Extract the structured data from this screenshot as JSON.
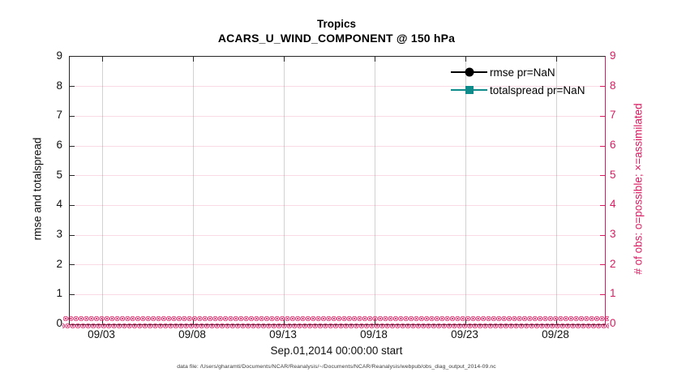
{
  "title": {
    "line1": "Tropics",
    "line2": "ACARS_U_WIND_COMPONENT @ 150 hPa"
  },
  "axes": {
    "ylabel_left": "rmse and totalspread",
    "ylabel_right": "# of obs: o=possible; ×=assimilated",
    "xlabel": "Sep.01,2014 00:00:00 start",
    "y_tick_labels": [
      "0",
      "1",
      "2",
      "3",
      "4",
      "5",
      "6",
      "7",
      "8",
      "9"
    ],
    "x_tick_labels": [
      "09/03",
      "09/08",
      "09/13",
      "09/18",
      "09/23",
      "09/28"
    ]
  },
  "legend": {
    "items": [
      {
        "label": "rmse pr=NaN",
        "color": "#000000",
        "marker": "circle"
      },
      {
        "label": "totalspread pr=NaN",
        "color": "#0f8b8b",
        "marker": "square"
      }
    ]
  },
  "footer": "data file: /Users/gharamti/Documents/NCAR/Reanalysis/~/Documents/NCAR/Reanalysis/webpub/obs_diag_output_2014-09.nc",
  "colors": {
    "accent_pink": "#d81b60",
    "teal": "#0f8b8b",
    "axis_dark": "#262626",
    "grid_horizontal": "rgba(216,27,96,0.16)",
    "grid_vertical": "rgba(125,125,125,0.35)"
  },
  "marker_band": {
    "glyph": "⊗",
    "meaning": "overlapping o=possible and ×=assimilated markers at count 0 along entire x-axis",
    "color": "#d81b60"
  },
  "chart_data": {
    "type": "line",
    "title": "Tropics",
    "subtitle": "ACARS_U_WIND_COMPONENT @ 150 hPa",
    "xlabel": "Sep.01,2014 00:00:00 start",
    "ylabel_left": "rmse and totalspread",
    "ylabel_right": "# of obs: o=possible; ×=assimilated",
    "ylim": [
      0,
      9
    ],
    "ylim_right": [
      0,
      9
    ],
    "y_ticks": [
      0,
      1,
      2,
      3,
      4,
      5,
      6,
      7,
      8,
      9
    ],
    "x_tick_labels": [
      "09/03",
      "09/08",
      "09/13",
      "09/18",
      "09/23",
      "09/28"
    ],
    "x_range": "Sep 01 2014 to Sep 30 2014",
    "grid": true,
    "legend_position": "top-right",
    "series": [
      {
        "name": "rmse pr=NaN",
        "axis": "left",
        "color": "#000000",
        "marker": "filled-circle",
        "values": "all NaN - nothing plotted"
      },
      {
        "name": "totalspread pr=NaN",
        "axis": "left",
        "color": "#0f8b8b",
        "marker": "filled-square",
        "values": "all NaN - nothing plotted"
      },
      {
        "name": "# of possible obs (o)",
        "axis": "right",
        "color": "#d81b60",
        "marker": "o",
        "values": "0 at every time bin across full x-range"
      },
      {
        "name": "# of assimilated obs (×)",
        "axis": "right",
        "color": "#d81b60",
        "marker": "×",
        "values": "0 at every time bin across full x-range"
      }
    ]
  }
}
